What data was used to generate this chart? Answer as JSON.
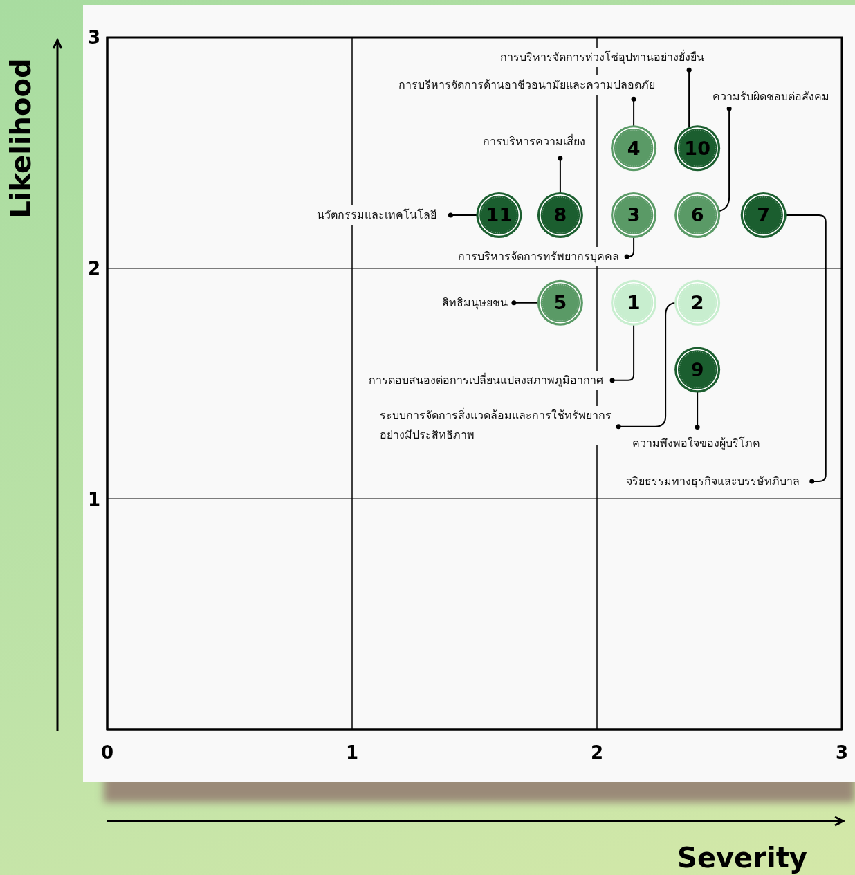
{
  "chart_data": {
    "type": "bubble",
    "xlabel": "Severity",
    "ylabel": "Likelihood",
    "x": [
      2.15,
      2.41,
      2.15,
      2.15,
      1.85,
      2.41,
      2.68,
      1.85,
      2.41,
      2.41,
      1.6
    ],
    "values": [
      1.85,
      1.85,
      2.23,
      2.52,
      1.85,
      2.23,
      2.23,
      2.23,
      1.56,
      2.52,
      2.23
    ],
    "sizes": [
      1,
      1,
      1,
      1,
      1,
      1,
      1,
      1,
      1,
      1,
      1
    ],
    "colors": [
      "#c8eecf",
      "#c8eecf",
      "#5a9a66",
      "#5a9a66",
      "#5a9a66",
      "#5a9a66",
      "#1b5e2f",
      "#1b5e2f",
      "#1b5e2f",
      "#1b5e2f",
      "#1b5e2f"
    ],
    "xlim": [
      0,
      3
    ],
    "ylim": [
      0,
      3
    ],
    "xticks": [
      0,
      1,
      2,
      3
    ],
    "yticks": [
      {
        "value": 0,
        "label": null
      },
      1,
      2,
      3
    ],
    "grid": true,
    "legend": false,
    "marker": "circle",
    "annotations": [
      {
        "text": "การตอบสนองต่อการเปลี่ยนแปลงสภาพภูมิอากาศ",
        "x": 2.15,
        "y": 1.85
      },
      {
        "text": "ระบบการจัดการสิ่งแวดล้อมและการใช้ทรัพยากร\nอย่างมีประสิทธิภาพ",
        "x": 2.41,
        "y": 1.85
      },
      {
        "text": "การบริหารจัดการทรัพยากรบุคคล",
        "x": 2.15,
        "y": 2.23
      },
      {
        "text": "การบรีหารจัดการด้านอาชีวอนามัยและความปลอดภัย",
        "x": 2.15,
        "y": 2.52
      },
      {
        "text": "สิทธิมนุษยชน",
        "x": 1.85,
        "y": 1.85
      },
      {
        "text": "ความรับผิดชอบต่อสังคม",
        "x": 2.41,
        "y": 2.23
      },
      {
        "text": "จริยธรรมทางธุรกิจและบรรษัทภิบาล",
        "x": 2.68,
        "y": 2.23
      },
      {
        "text": "การบริหารความเสี่ยง",
        "x": 1.85,
        "y": 2.23
      },
      {
        "text": "ความพึงพอใจของผู้บริโภค",
        "x": 2.41,
        "y": 1.56
      },
      {
        "text": "การบริหารจัดการห่วงโซ่อุปทานอย่างยั่งยืน",
        "x": 2.41,
        "y": 2.52
      },
      {
        "text": "นวัตกรรมและเทคโนโลยี",
        "x": 1.6,
        "y": 2.23
      },
      {
        "text": "1",
        "x": 2.15,
        "y": 1.85
      },
      {
        "text": "2",
        "x": 2.41,
        "y": 1.85
      },
      {
        "text": "3",
        "x": 2.15,
        "y": 2.23
      },
      {
        "text": "4",
        "x": 2.15,
        "y": 2.52
      },
      {
        "text": "5",
        "x": 1.85,
        "y": 1.85
      },
      {
        "text": "6",
        "x": 2.41,
        "y": 2.23
      },
      {
        "text": "7",
        "x": 2.68,
        "y": 2.23
      },
      {
        "text": "8",
        "x": 1.85,
        "y": 2.23
      },
      {
        "text": "9",
        "x": 2.41,
        "y": 1.56
      },
      {
        "text": "10",
        "x": 2.41,
        "y": 2.52
      },
      {
        "text": "11",
        "x": 1.6,
        "y": 2.23
      }
    ]
  }
}
